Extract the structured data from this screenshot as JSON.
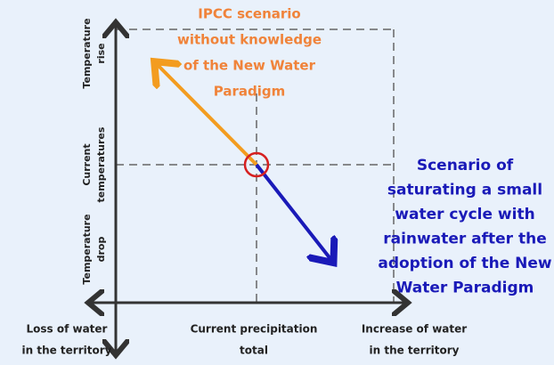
{
  "y_axis_labels": [
    [
      "Temperature",
      "rise"
    ],
    [
      "Current",
      "temperatures"
    ],
    [
      "Temperature",
      "drop"
    ]
  ],
  "x_axis_labels": [
    [
      "Loss of water",
      "in the territory"
    ],
    [
      "Current precipitation",
      "total"
    ],
    [
      "Increase of water",
      "in the territory"
    ]
  ],
  "ipcc_scenario": [
    "IPCC scenario",
    "without knowledge",
    "of the New Water",
    "Paradigm"
  ],
  "new_scenario": [
    "Scenario of",
    "saturating a small",
    "water cycle with",
    "rainwater after the",
    "adoption of the New",
    "Water Paradigm"
  ]
}
